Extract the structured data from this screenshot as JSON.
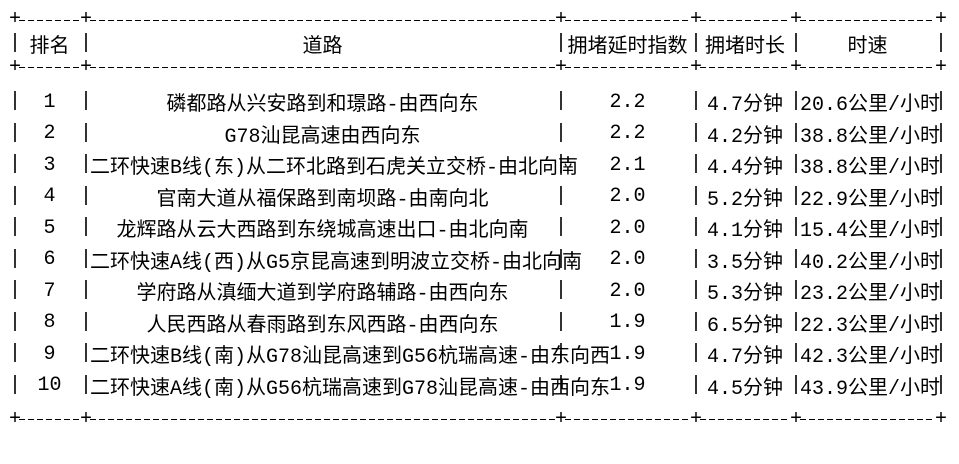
{
  "colors": {
    "background": "#ffffff",
    "text": "#000000",
    "border": "#000000"
  },
  "table": {
    "headers": {
      "rank": "排名",
      "road": "道路",
      "delay_index": "拥堵延时指数",
      "duration": "拥堵时长",
      "speed": "时速"
    },
    "rows": [
      {
        "rank": "1",
        "road": "磷都路从兴安路到和璟路-由西向东",
        "delay_index": "2.2",
        "duration": "4.7分钟",
        "speed": "20.6公里/小时"
      },
      {
        "rank": "2",
        "road": "G78汕昆高速由西向东",
        "delay_index": "2.2",
        "duration": "4.2分钟",
        "speed": "38.8公里/小时"
      },
      {
        "rank": "3",
        "road": "二环快速B线(东)从二环北路到石虎关立交桥-由北向南",
        "delay_index": "2.1",
        "duration": "4.4分钟",
        "speed": "38.8公里/小时"
      },
      {
        "rank": "4",
        "road": "官南大道从福保路到南坝路-由南向北",
        "delay_index": "2.0",
        "duration": "5.2分钟",
        "speed": "22.9公里/小时"
      },
      {
        "rank": "5",
        "road": "龙辉路从云大西路到东绕城高速出口-由北向南",
        "delay_index": "2.0",
        "duration": "4.1分钟",
        "speed": "15.4公里/小时"
      },
      {
        "rank": "6",
        "road": "二环快速A线(西)从G5京昆高速到明波立交桥-由北向南",
        "delay_index": "2.0",
        "duration": "3.5分钟",
        "speed": "40.2公里/小时"
      },
      {
        "rank": "7",
        "road": "学府路从滇缅大道到学府路辅路-由西向东",
        "delay_index": "2.0",
        "duration": "5.3分钟",
        "speed": "23.2公里/小时"
      },
      {
        "rank": "8",
        "road": "人民西路从春雨路到东风西路-由西向东",
        "delay_index": "1.9",
        "duration": "6.5分钟",
        "speed": "22.3公里/小时"
      },
      {
        "rank": "9",
        "road": "二环快速B线(南)从G78汕昆高速到G56杭瑞高速-由东向西",
        "delay_index": "1.9",
        "duration": "4.7分钟",
        "speed": "42.3公里/小时"
      },
      {
        "rank": "10",
        "road": "二环快速A线(南)从G56杭瑞高速到G78汕昆高速-由西向东",
        "delay_index": "1.9",
        "duration": "4.5分钟",
        "speed": "43.9公里/小时"
      }
    ]
  }
}
